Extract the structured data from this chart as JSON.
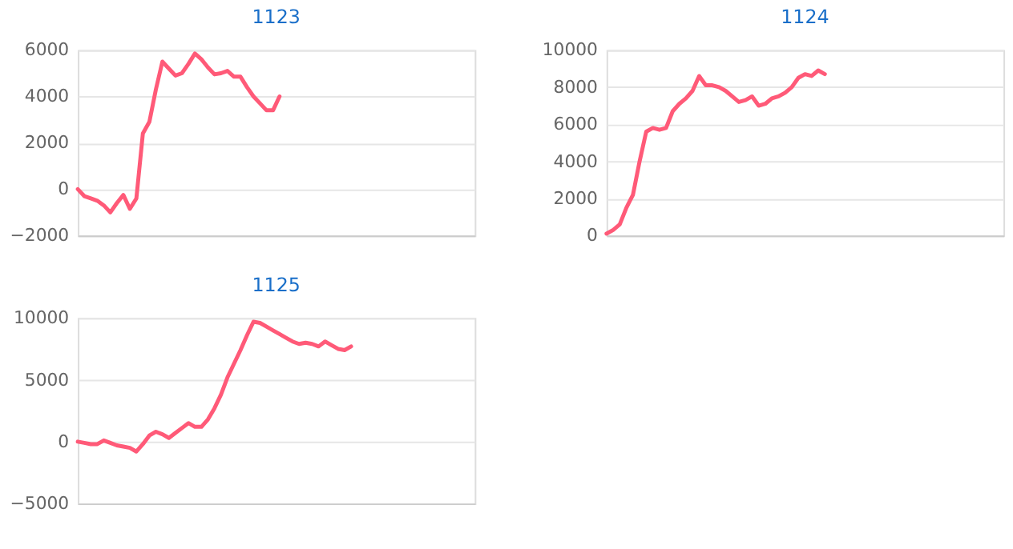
{
  "chart_data": [
    {
      "type": "line",
      "title": "1123",
      "categories": [
        null,
        null,
        null,
        null,
        null,
        null,
        null,
        null,
        null,
        null,
        null,
        null,
        null,
        null,
        null,
        null,
        null,
        null,
        null,
        null,
        null,
        null,
        null,
        null,
        null,
        null,
        null,
        null,
        null,
        null,
        null,
        null,
        null,
        null,
        null,
        null,
        null,
        null,
        null,
        null,
        null,
        null,
        null,
        null,
        null,
        null,
        null,
        null,
        null,
        null,
        null,
        null,
        null,
        null,
        null,
        null,
        null,
        null,
        null,
        null,
        null,
        null
      ],
      "series": [
        {
          "color": "#ff5a78",
          "values": [
            0,
            -300,
            -400,
            -500,
            -700,
            -1000,
            -600,
            -250,
            -850,
            -400,
            2400,
            2900,
            4300,
            5500,
            5200,
            4900,
            5000,
            5400,
            5850,
            5600,
            5250,
            4950,
            5000,
            5100,
            4850,
            4850,
            4400,
            4000,
            3700,
            3400,
            3400,
            4000,
            null,
            null,
            null,
            null,
            null,
            null,
            null,
            null,
            null,
            null,
            null,
            null,
            null,
            null,
            null,
            null,
            null,
            null,
            null,
            null,
            null,
            null,
            null,
            null,
            null,
            null,
            null,
            null,
            null,
            null
          ]
        }
      ],
      "ylim": [
        -2000,
        6000
      ],
      "yticks": [
        -2000,
        0,
        2000,
        4000,
        6000
      ],
      "grid": "y",
      "tick_labels": "y",
      "line_style": "solid"
    },
    {
      "type": "line",
      "title": "1124",
      "categories": [
        null,
        null,
        null,
        null,
        null,
        null,
        null,
        null,
        null,
        null,
        null,
        null,
        null,
        null,
        null,
        null,
        null,
        null,
        null,
        null,
        null,
        null,
        null,
        null,
        null,
        null,
        null,
        null,
        null,
        null,
        null,
        null,
        null,
        null,
        null,
        null,
        null,
        null,
        null,
        null,
        null,
        null,
        null,
        null,
        null,
        null,
        null,
        null,
        null,
        null,
        null,
        null,
        null,
        null,
        null,
        null,
        null,
        null,
        null,
        null,
        null
      ],
      "series": [
        {
          "color": "#ff5a78",
          "values": [
            100,
            300,
            600,
            1500,
            2200,
            4000,
            5600,
            5800,
            5700,
            5800,
            6700,
            7100,
            7400,
            7800,
            8600,
            8100,
            8100,
            8000,
            7800,
            7500,
            7200,
            7300,
            7500,
            7000,
            7100,
            7400,
            7500,
            7700,
            8000,
            8500,
            8700,
            8600,
            8900,
            8700,
            null,
            null,
            null,
            null,
            null,
            null,
            null,
            null,
            null,
            null,
            null,
            null,
            null,
            null,
            null,
            null,
            null,
            null,
            null,
            null,
            null,
            null,
            null,
            null,
            null,
            null,
            null
          ]
        }
      ],
      "ylim": [
        0,
        10000
      ],
      "yticks": [
        0,
        2000,
        4000,
        6000,
        8000,
        10000
      ],
      "grid": "y",
      "tick_labels": "y",
      "line_style": "solid"
    },
    {
      "type": "line",
      "title": "1125",
      "categories": [
        null,
        null,
        null,
        null,
        null,
        null,
        null,
        null,
        null,
        null,
        null,
        null,
        null,
        null,
        null,
        null,
        null,
        null,
        null,
        null,
        null,
        null,
        null,
        null,
        null,
        null,
        null,
        null,
        null,
        null,
        null,
        null,
        null,
        null,
        null,
        null,
        null,
        null,
        null,
        null,
        null,
        null,
        null,
        null,
        null,
        null,
        null,
        null,
        null,
        null,
        null,
        null,
        null,
        null,
        null,
        null,
        null,
        null,
        null,
        null,
        null,
        null
      ],
      "series": [
        {
          "color": "#ff5a78",
          "values": [
            0,
            -100,
            -200,
            -200,
            100,
            -100,
            -300,
            -400,
            -500,
            -800,
            -200,
            500,
            800,
            600,
            300,
            700,
            1100,
            1500,
            1200,
            1200,
            1800,
            2700,
            3800,
            5200,
            6300,
            7400,
            8600,
            9700,
            9600,
            9300,
            9000,
            8700,
            8400,
            8100,
            7900,
            8000,
            7900,
            7700,
            8100,
            7800,
            7500,
            7400,
            7700,
            null,
            null,
            null,
            null,
            null,
            null,
            null,
            null,
            null,
            null,
            null,
            null,
            null,
            null,
            null,
            null,
            null,
            null,
            null
          ]
        }
      ],
      "ylim": [
        -5000,
        10000
      ],
      "yticks": [
        -5000,
        0,
        5000,
        10000
      ],
      "grid": "y",
      "tick_labels": "y",
      "line_style": "solid"
    }
  ]
}
